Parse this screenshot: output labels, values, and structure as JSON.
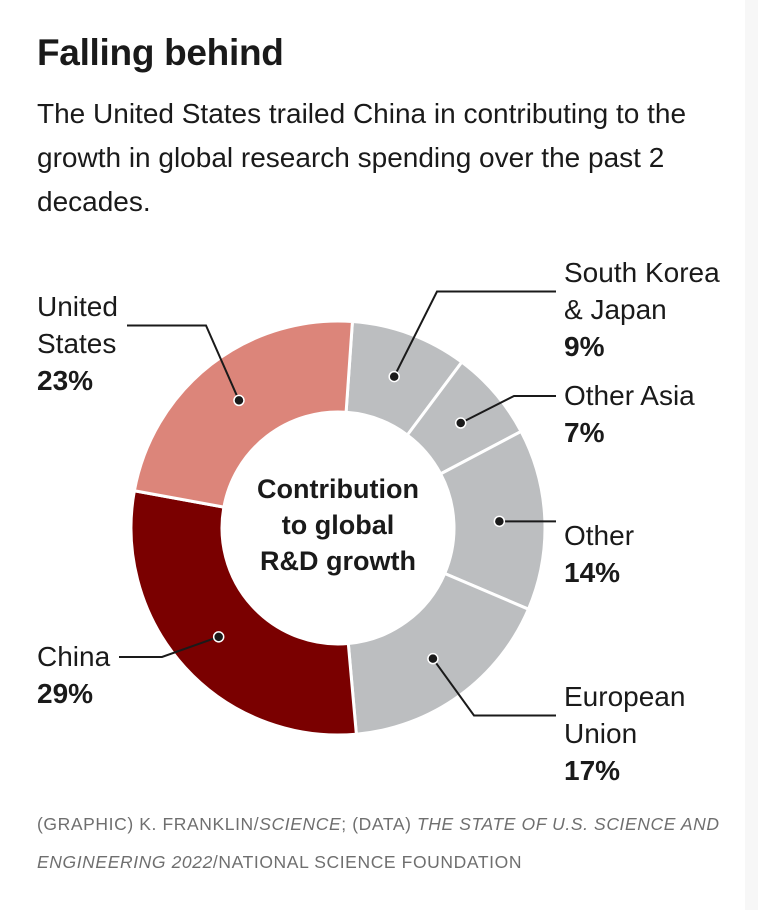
{
  "header": {
    "title": "Falling behind",
    "subtitle": "The United States trailed China in contributing to the growth in global research spending over the past 2 decades."
  },
  "chart_data": {
    "type": "pie",
    "style": "donut",
    "center_label": [
      "Contribution",
      "to global",
      "R&D growth"
    ],
    "start_angle_deg": 4,
    "slices": [
      {
        "label": [
          "South Korea",
          "& Japan"
        ],
        "value": 9,
        "value_label": "9%",
        "color": "#bcbec0"
      },
      {
        "label": [
          "Other Asia"
        ],
        "value": 7,
        "value_label": "7%",
        "color": "#bcbec0"
      },
      {
        "label": [
          "Other"
        ],
        "value": 14,
        "value_label": "14%",
        "color": "#bcbec0"
      },
      {
        "label": [
          "European",
          "Union"
        ],
        "value": 17,
        "value_label": "17%",
        "color": "#bcbec0"
      },
      {
        "label": [
          "China"
        ],
        "value": 29,
        "value_label": "29%",
        "color": "#7a0000"
      },
      {
        "label": [
          "United",
          "States"
        ],
        "value": 23,
        "value_label": "23%",
        "color": "#dc857a"
      }
    ]
  },
  "footer": {
    "graphic_prefix": "(GRAPHIC) K. FRANKLIN/",
    "graphic_source": "SCIENCE",
    "data_prefix": "; (DATA) ",
    "data_source": "THE STATE OF U.S. SCIENCE AND ENGINEERING 2022",
    "data_suffix": "/NATIONAL SCIENCE FOUNDATION"
  }
}
